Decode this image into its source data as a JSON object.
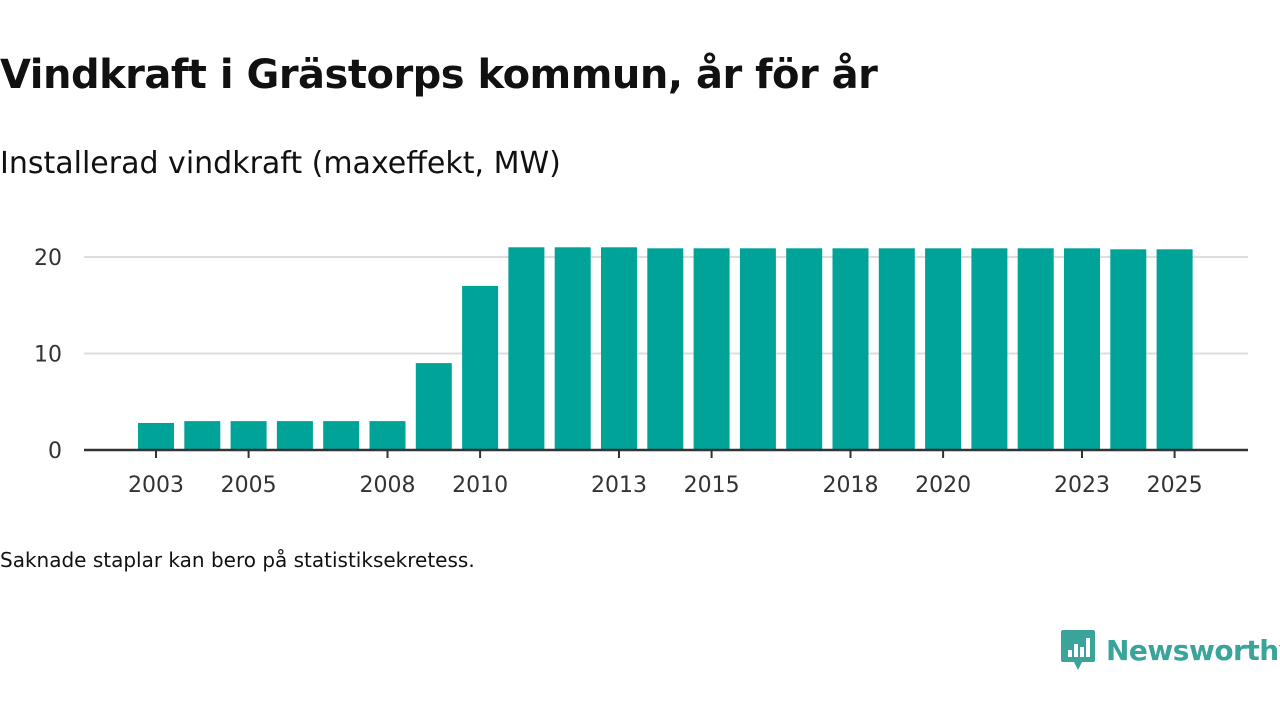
{
  "title": "Vindkraft i Grästorps kommun, år för år",
  "subtitle": "Installerad vindkraft (maxeffekt, MW)",
  "footnote": "Saknade staplar kan bero på statistiksekretess.",
  "brand": "Newsworthy",
  "colors": {
    "bar": "#00a398",
    "grid": "#dddddd",
    "axis": "#333333",
    "brand": "#3aa39a"
  },
  "chart_data": {
    "type": "bar",
    "title": "Vindkraft i Grästorps kommun, år för år",
    "ylabel": "Installerad vindkraft (maxeffekt, MW)",
    "xlabel": "",
    "categories": [
      "2003",
      "2004",
      "2005",
      "2006",
      "2007",
      "2008",
      "2009",
      "2010",
      "2011",
      "2012",
      "2013",
      "2014",
      "2015",
      "2016",
      "2017",
      "2018",
      "2019",
      "2020",
      "2021",
      "2022",
      "2023",
      "2024",
      "2025"
    ],
    "values": [
      2.8,
      3,
      3,
      3,
      3,
      3,
      9,
      17,
      21,
      21,
      21,
      20.9,
      20.9,
      20.9,
      20.9,
      20.9,
      20.9,
      20.9,
      20.9,
      20.9,
      20.9,
      20.8,
      20.8
    ],
    "x_tick_labels": [
      "2003",
      "2005",
      "2008",
      "2010",
      "2013",
      "2015",
      "2018",
      "2020",
      "2023",
      "2025"
    ],
    "y_ticks": [
      0,
      10,
      20
    ],
    "ylim": [
      0,
      24
    ],
    "grid": true
  }
}
